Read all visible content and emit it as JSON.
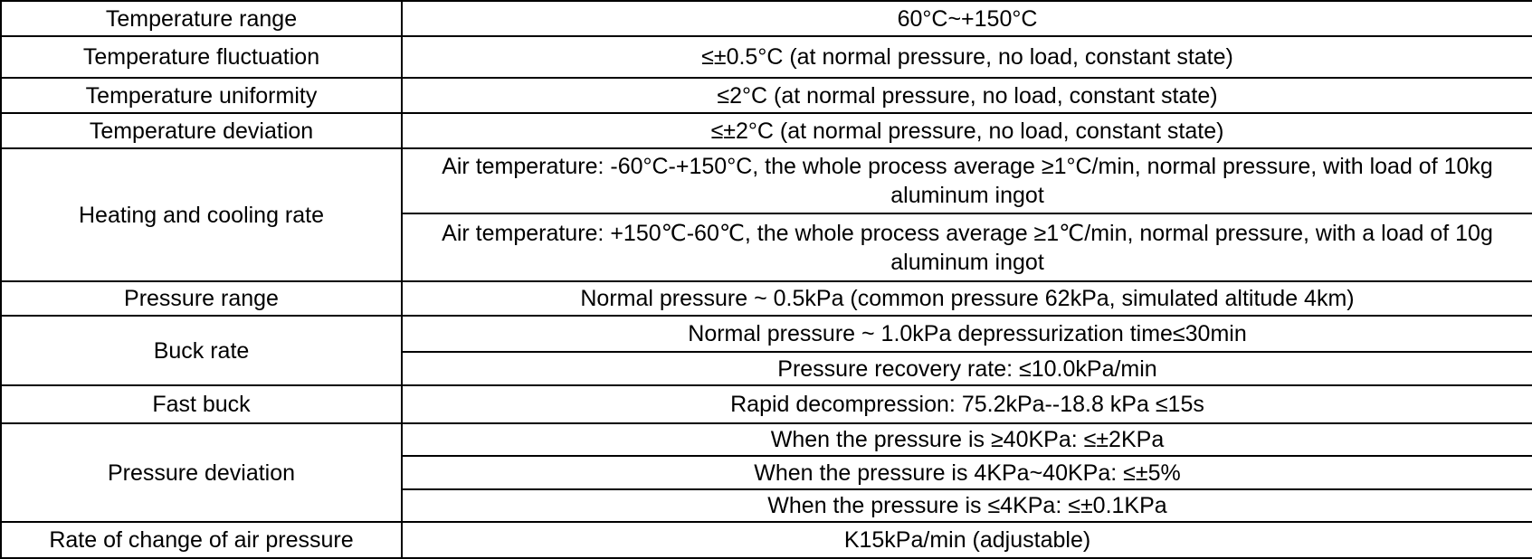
{
  "table": {
    "rows": [
      {
        "label": "Temperature range",
        "values": [
          "60°C~+150°C"
        ]
      },
      {
        "label": "Temperature fluctuation",
        "values": [
          "≤±0.5°C (at normal pressure, no load, constant state)"
        ]
      },
      {
        "label": "Temperature uniformity",
        "values": [
          "≤2°C (at normal pressure, no load, constant state)"
        ]
      },
      {
        "label": "Temperature deviation",
        "values": [
          "≤±2°C (at normal pressure, no load, constant state)"
        ]
      },
      {
        "label": "Heating and cooling rate",
        "values": [
          "Air temperature: -60°C-+150°C, the whole process average ≥1°C/min, normal pressure, with load of 10kg aluminum ingot",
          "Air temperature: +150℃-60℃, the whole process average ≥1℃/min, normal pressure, with a load of 10g aluminum ingot"
        ]
      },
      {
        "label": "Pressure range",
        "values": [
          "Normal pressure ~ 0.5kPa (common pressure 62kPa, simulated altitude 4km)"
        ]
      },
      {
        "label": "Buck rate",
        "values": [
          "Normal pressure ~ 1.0kPa depressurization time≤30min",
          "Pressure recovery rate: ≤10.0kPa/min"
        ]
      },
      {
        "label": "Fast buck",
        "values": [
          "Rapid decompression: 75.2kPa--18.8 kPa ≤15s"
        ]
      },
      {
        "label": "Pressure deviation",
        "values": [
          "When the pressure is ≥40KPa: ≤±2KPa",
          "When the pressure is 4KPa~40KPa: ≤±5%",
          "When the pressure is ≤4KPa: ≤±0.1KPa"
        ]
      },
      {
        "label": "Rate of change of air pressure",
        "values": [
          "K15kPa/min (adjustable)"
        ]
      }
    ]
  }
}
